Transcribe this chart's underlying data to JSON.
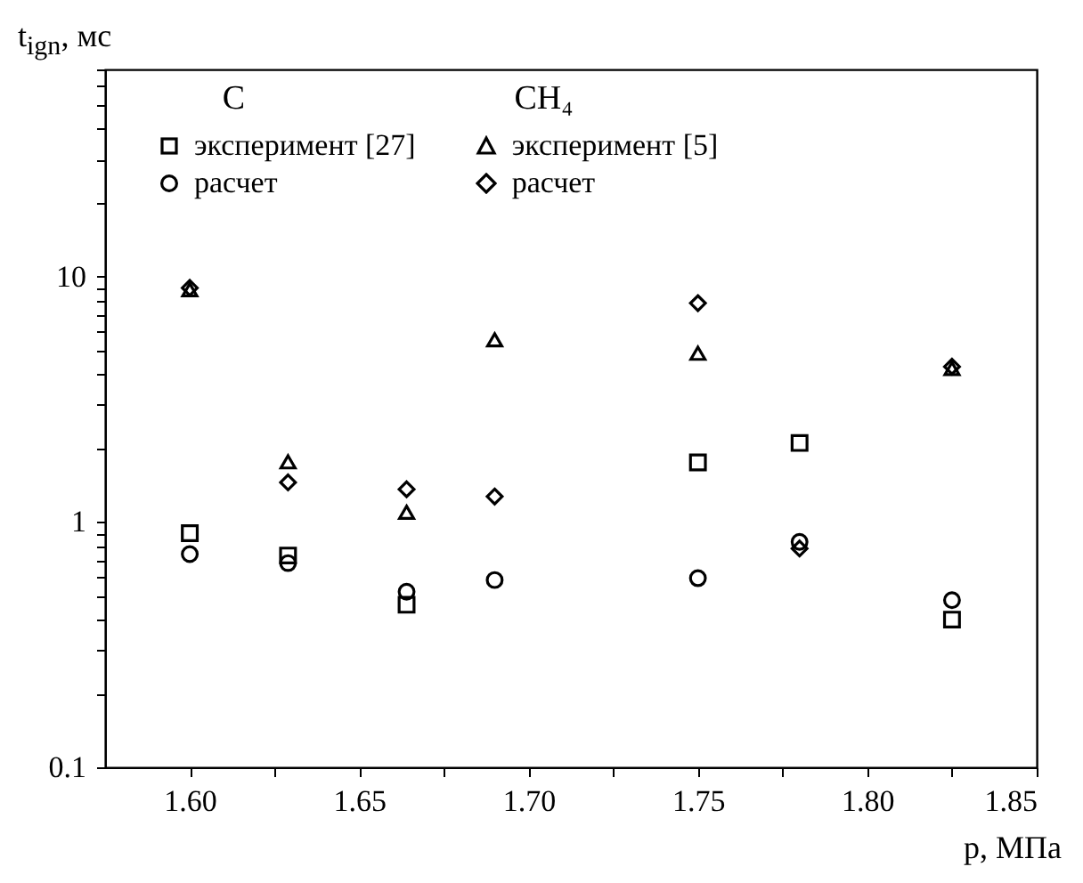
{
  "chart_data": {
    "type": "scatter",
    "xlabel": "p, МПа",
    "ylabel": "t$_{ign}$, мс",
    "log": true,
    "grid": false,
    "legend": "top",
    "annotations": [
      "C",
      "CH₄"
    ],
    "xlim": [
      1.575,
      1.85
    ],
    "xticks": [
      {
        "value": 1.6,
        "label": "1.60"
      },
      {
        "value": 1.625,
        "label": null
      },
      {
        "value": 1.65,
        "label": "1.65"
      },
      {
        "value": 1.675,
        "label": null
      },
      {
        "value": 1.7,
        "label": "1.70"
      },
      {
        "value": 1.725,
        "label": null
      },
      {
        "value": 1.75,
        "label": "1.75"
      },
      {
        "value": 1.775,
        "label": null
      },
      {
        "value": 1.8,
        "label": "1.80"
      },
      {
        "value": 1.825,
        "label": null
      },
      {
        "value": 1.85,
        "label": "1.85"
      }
    ],
    "ylim": [
      0.1,
      70
    ],
    "yticks": [
      0.1,
      {
        "value": 0.2,
        "label": null
      },
      {
        "value": 0.3,
        "label": null
      },
      {
        "value": 0.4,
        "label": null
      },
      {
        "value": 0.5,
        "label": null
      },
      {
        "value": 0.6,
        "label": null
      },
      {
        "value": 0.7,
        "label": null
      },
      {
        "value": 0.8,
        "label": null
      },
      {
        "value": 0.9,
        "label": null
      },
      1,
      {
        "value": 2,
        "label": null
      },
      {
        "value": 3,
        "label": null
      },
      {
        "value": 4,
        "label": null
      },
      {
        "value": 5,
        "label": null
      },
      {
        "value": 6,
        "label": null
      },
      {
        "value": 7,
        "label": null
      },
      {
        "value": 8,
        "label": null
      },
      {
        "value": 9,
        "label": null
      },
      10,
      {
        "value": 20,
        "label": null
      },
      {
        "value": 30,
        "label": null
      },
      {
        "value": 40,
        "label": null
      },
      {
        "value": 50,
        "label": null
      },
      {
        "value": 60,
        "label": null
      },
      {
        "value": 70,
        "label": null
      }
    ],
    "series": [
      {
        "name": "эксперимент [27]",
        "color": "#000000",
        "marker": "square",
        "x": [
          1.6,
          1.629,
          1.664,
          1.75,
          1.78,
          1.825
        ],
        "values": [
          0.9,
          0.73,
          0.46,
          1.75,
          2.1,
          0.4
        ]
      },
      {
        "name": "расчет",
        "color": "#000000",
        "marker": "circle",
        "x": [
          1.6,
          1.629,
          1.664,
          1.69,
          1.75,
          1.78,
          1.825
        ],
        "values": [
          0.74,
          0.68,
          0.52,
          0.58,
          0.59,
          0.83,
          0.48
        ]
      },
      {
        "name": "эксперимент [5]",
        "color": "#000000",
        "marker": "triangle",
        "x": [
          1.6,
          1.629,
          1.664,
          1.69,
          1.75,
          1.825
        ],
        "values": [
          8.8,
          1.75,
          1.09,
          5.5,
          4.85,
          4.2
        ]
      },
      {
        "name": "расчет",
        "color": "#000000",
        "marker": "diamond",
        "x": [
          1.6,
          1.629,
          1.664,
          1.69,
          1.75,
          1.78,
          1.825
        ],
        "values": [
          9.0,
          1.45,
          1.36,
          1.27,
          7.8,
          0.78,
          4.3
        ]
      }
    ]
  }
}
